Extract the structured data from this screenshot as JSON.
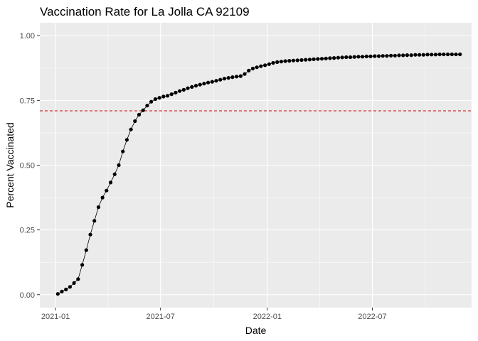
{
  "chart_data": {
    "type": "line",
    "title": "Vaccination Rate for La Jolla CA 92109",
    "xlabel": "Date",
    "ylabel": "Percent Vaccinated",
    "x_ticks": [
      "2021-01",
      "2021-07",
      "2022-01",
      "2022-07"
    ],
    "y_ticks": [
      "0.00",
      "0.25",
      "0.50",
      "0.75",
      "1.00"
    ],
    "ylim": [
      0,
      1
    ],
    "xlim": [
      "2020-12-05",
      "2022-12-19"
    ],
    "grid": true,
    "background_color": "#ebebeb",
    "line_color": "#000000",
    "reference_line": {
      "y": 0.71,
      "color": "#cc0000",
      "style": "dashed"
    },
    "series": [
      {
        "x": [
          "2021-01-05",
          "2021-01-12",
          "2021-01-19",
          "2021-01-26",
          "2021-02-02",
          "2021-02-09",
          "2021-02-16",
          "2021-02-23",
          "2021-03-02",
          "2021-03-09",
          "2021-03-16",
          "2021-03-23",
          "2021-03-30",
          "2021-04-06",
          "2021-04-13",
          "2021-04-20",
          "2021-04-27",
          "2021-05-04",
          "2021-05-11",
          "2021-05-18",
          "2021-05-25",
          "2021-06-01",
          "2021-06-08",
          "2021-06-15",
          "2021-06-22",
          "2021-06-29",
          "2021-07-06",
          "2021-07-13",
          "2021-07-20",
          "2021-07-27",
          "2021-08-03",
          "2021-08-10",
          "2021-08-17",
          "2021-08-24",
          "2021-08-31",
          "2021-09-07",
          "2021-09-14",
          "2021-09-21",
          "2021-09-28",
          "2021-10-05",
          "2021-10-12",
          "2021-10-19",
          "2021-10-26",
          "2021-11-02",
          "2021-11-09",
          "2021-11-16",
          "2021-11-23",
          "2021-11-30",
          "2021-12-07",
          "2021-12-14",
          "2021-12-21",
          "2021-12-28",
          "2022-01-04",
          "2022-01-11",
          "2022-01-18",
          "2022-01-25",
          "2022-02-01",
          "2022-02-08",
          "2022-02-15",
          "2022-02-22",
          "2022-03-01",
          "2022-03-08",
          "2022-03-15",
          "2022-03-22",
          "2022-03-29",
          "2022-04-05",
          "2022-04-12",
          "2022-04-19",
          "2022-04-26",
          "2022-05-03",
          "2022-05-10",
          "2022-05-17",
          "2022-05-24",
          "2022-05-31",
          "2022-06-07",
          "2022-06-14",
          "2022-06-21",
          "2022-06-28",
          "2022-07-05",
          "2022-07-12",
          "2022-07-19",
          "2022-07-26",
          "2022-08-02",
          "2022-08-09",
          "2022-08-16",
          "2022-08-23",
          "2022-08-30",
          "2022-09-06",
          "2022-09-13",
          "2022-09-20",
          "2022-09-27",
          "2022-10-04",
          "2022-10-11",
          "2022-10-18",
          "2022-10-25",
          "2022-11-01",
          "2022-11-08",
          "2022-11-15",
          "2022-11-22",
          "2022-11-29"
        ],
        "y": [
          0.003,
          0.012,
          0.02,
          0.03,
          0.045,
          0.06,
          0.115,
          0.172,
          0.232,
          0.285,
          0.338,
          0.375,
          0.402,
          0.433,
          0.465,
          0.5,
          0.553,
          0.598,
          0.638,
          0.67,
          0.695,
          0.712,
          0.73,
          0.745,
          0.755,
          0.76,
          0.765,
          0.768,
          0.774,
          0.78,
          0.786,
          0.791,
          0.797,
          0.802,
          0.807,
          0.811,
          0.815,
          0.819,
          0.822,
          0.826,
          0.83,
          0.834,
          0.837,
          0.84,
          0.842,
          0.844,
          0.852,
          0.865,
          0.873,
          0.878,
          0.882,
          0.886,
          0.89,
          0.895,
          0.898,
          0.9,
          0.902,
          0.903,
          0.904,
          0.905,
          0.906,
          0.907,
          0.908,
          0.909,
          0.91,
          0.911,
          0.912,
          0.913,
          0.914,
          0.915,
          0.916,
          0.917,
          0.917,
          0.918,
          0.919,
          0.919,
          0.92,
          0.92,
          0.921,
          0.921,
          0.922,
          0.922,
          0.923,
          0.923,
          0.924,
          0.924,
          0.925,
          0.925,
          0.926,
          0.926,
          0.926,
          0.927,
          0.927,
          0.927,
          0.928,
          0.928,
          0.928,
          0.928,
          0.928,
          0.928
        ]
      }
    ]
  }
}
